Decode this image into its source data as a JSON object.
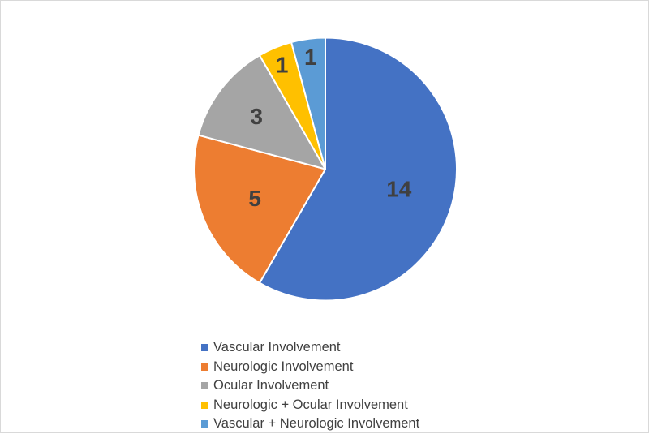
{
  "chart_data": {
    "type": "pie",
    "title": "",
    "slices": [
      {
        "label": "Vascular Involvement",
        "value": 14,
        "color": "#4472C4"
      },
      {
        "label": "Neurologic Involvement",
        "value": 5,
        "color": "#ED7D31"
      },
      {
        "label": "Ocular Involvement",
        "value": 3,
        "color": "#A5A5A5"
      },
      {
        "label": "Neurologic + Ocular Involvement",
        "value": 1,
        "color": "#FFC000"
      },
      {
        "label": "Vascular + Neurologic Involvement",
        "value": 1,
        "color": "#5B9BD5"
      }
    ],
    "data_labels": [
      "14",
      "5",
      "3",
      "1",
      "1"
    ],
    "start_angle": "12 o'clock",
    "direction": "clockwise",
    "legend_position": "bottom"
  }
}
